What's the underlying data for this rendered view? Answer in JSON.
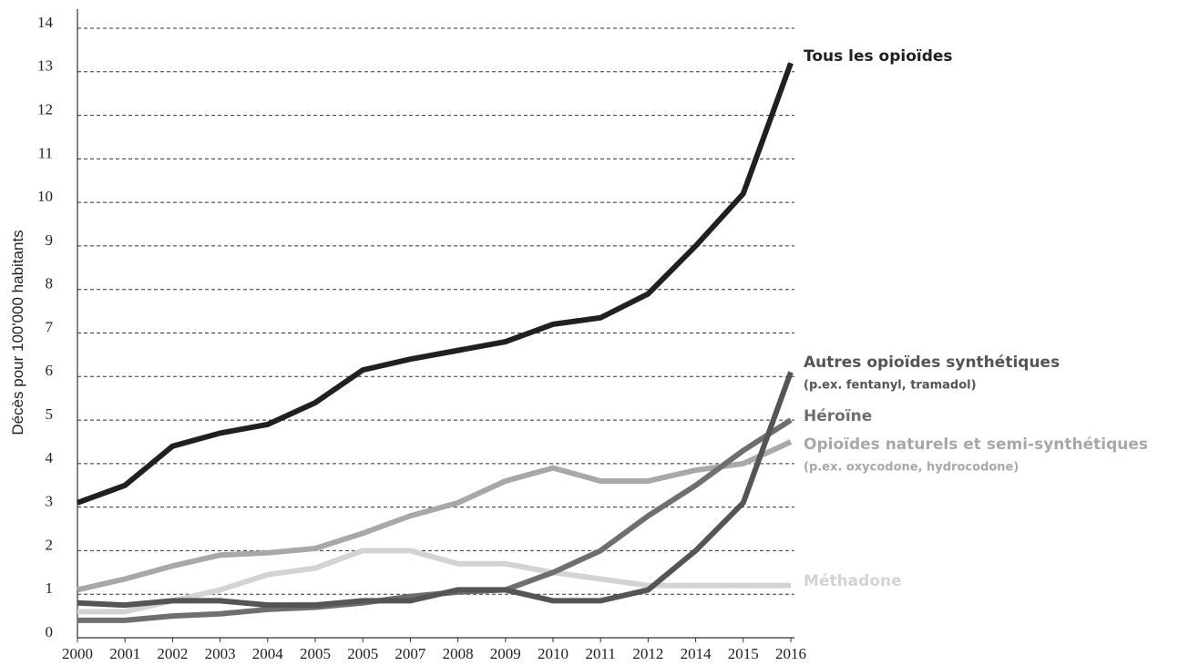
{
  "chart_data": {
    "type": "line",
    "y_label": "Décès pour 100'000 habitants",
    "categories": [
      "2000",
      "2001",
      "2002",
      "2003",
      "2004",
      "2005",
      "2005",
      "2007",
      "2008",
      "2009",
      "2010",
      "2011",
      "2012",
      "2014",
      "2015",
      "2016"
    ],
    "ylim": [
      0,
      14
    ],
    "yticks": [
      0,
      1,
      2,
      3,
      4,
      5,
      6,
      7,
      8,
      9,
      10,
      11,
      12,
      13,
      14
    ],
    "grid": true,
    "series": [
      {
        "name": "Méthadone",
        "color": "#d3d3d3",
        "values": [
          0.6,
          0.6,
          0.85,
          1.1,
          1.45,
          1.6,
          2.0,
          2.0,
          1.7,
          1.7,
          1.5,
          1.35,
          1.2,
          1.2,
          1.2,
          1.2
        ]
      },
      {
        "name": "Opioïdes naturels et semi-synthétiques",
        "note": "(p.ex. oxycodone, hydrocodone)",
        "color": "#a8a8a8",
        "values": [
          1.1,
          1.35,
          1.65,
          1.9,
          1.95,
          2.05,
          2.4,
          2.8,
          3.1,
          3.6,
          3.9,
          3.6,
          3.6,
          3.85,
          4.0,
          4.5
        ]
      },
      {
        "name": "Héroïne",
        "color": "#6f6f6f",
        "values": [
          0.4,
          0.4,
          0.5,
          0.55,
          0.65,
          0.7,
          0.8,
          0.95,
          1.05,
          1.1,
          1.5,
          2.0,
          2.8,
          3.5,
          4.3,
          5.0
        ]
      },
      {
        "name": "Autres opioïdes synthétiques",
        "note": "(p.ex. fentanyl, tramadol)",
        "color": "#555555",
        "values": [
          0.8,
          0.75,
          0.85,
          0.85,
          0.75,
          0.75,
          0.85,
          0.85,
          1.1,
          1.1,
          0.85,
          0.85,
          1.1,
          2.0,
          3.1,
          6.1
        ]
      },
      {
        "name": "Tous les opioïdes",
        "color": "#231f20",
        "values": [
          3.1,
          3.5,
          4.4,
          4.7,
          4.9,
          5.4,
          6.15,
          6.4,
          6.6,
          6.8,
          7.2,
          7.35,
          7.9,
          9.0,
          10.2,
          13.2
        ]
      }
    ]
  }
}
